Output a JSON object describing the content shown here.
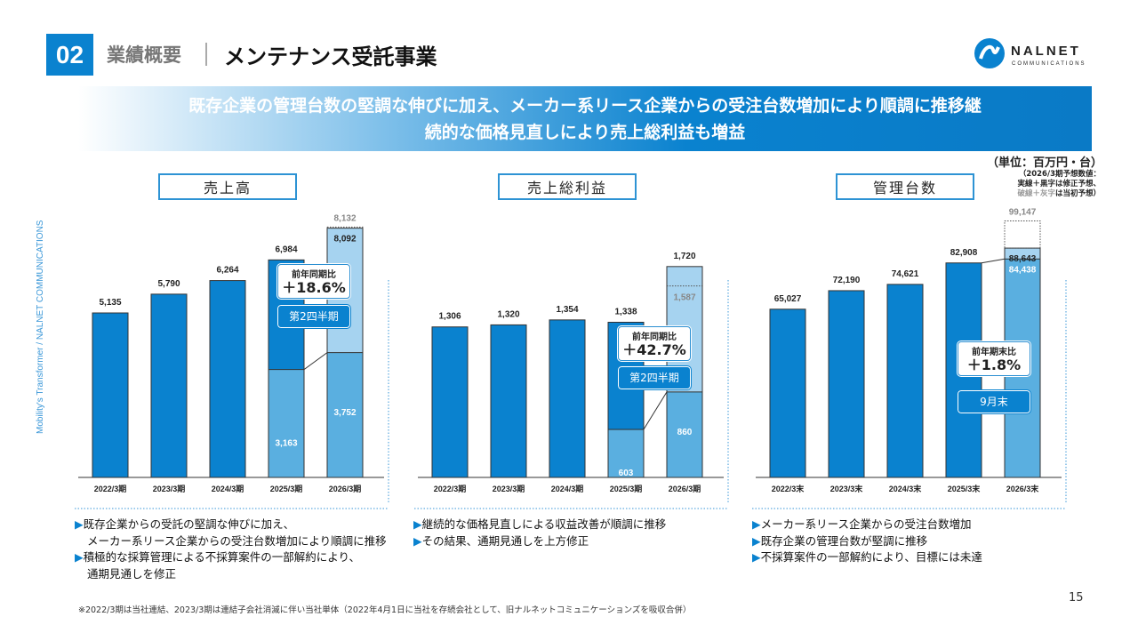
{
  "header": {
    "section_number": "02",
    "category": "業績概要",
    "title": "メンテナンス受託事業"
  },
  "logo": {
    "name": "NALNET",
    "sub": "COMMUNICATIONS"
  },
  "banner": {
    "line1": "既存企業の管理台数の堅調な伸びに加え、メーカー系リース企業からの受注台数増加により順調に推移継",
    "line2": "続的な価格見直しにより売上総利益も増益"
  },
  "unit": "（単位：百万円・台）",
  "forecast_note": {
    "line1": "（2026/3期予想数値：",
    "line2": "実線＋黒字は修正予想、",
    "line3_grey": "破線＋灰字",
    "line3_rest": "は当初予想）"
  },
  "side_text": "Mobility's Transformer / NALNET COMMUNICATIONS",
  "colors": {
    "actual": "#0a82cf",
    "half": "#5aafe0",
    "forecast": "#a6d3f0",
    "accent": "#0a82cf"
  },
  "chart_data": [
    {
      "type": "bar",
      "title": "売上高",
      "categories": [
        "2022/3期",
        "2023/3期",
        "2024/3期",
        "2025/3期",
        "2026/3期"
      ],
      "values": [
        5135,
        5790,
        6264,
        6984,
        8092
      ],
      "labels": [
        "5,135",
        "5,790",
        "6,264",
        "6,984",
        "8,092"
      ],
      "initial_forecast": 8132,
      "initial_label": "8,132",
      "half": {
        "prev": 3163,
        "prev_label": "3,163",
        "current": 3752,
        "current_label": "3,752"
      },
      "callout": {
        "label": "前年同期比",
        "value": "＋18.6%",
        "period": "第2四半期"
      },
      "ylim": [
        -600,
        8700
      ]
    },
    {
      "type": "bar",
      "title": "売上総利益",
      "categories": [
        "2022/3期",
        "2023/3期",
        "2024/3期",
        "2025/3期",
        "2026/3期"
      ],
      "values": [
        1306,
        1320,
        1354,
        1338,
        1720
      ],
      "labels": [
        "1,306",
        "1,320",
        "1,354",
        "1,338",
        "1,720"
      ],
      "initial_forecast": 1587,
      "initial_label": "1,587",
      "half": {
        "prev": 603,
        "prev_label": "603",
        "current": 860,
        "current_label": "860"
      },
      "callout": {
        "label": "前年同期比",
        "value": "＋42.7%",
        "period": "第2四半期"
      },
      "ylim": [
        274,
        2103
      ]
    },
    {
      "type": "bar",
      "title": "管理台数",
      "categories": [
        "2022/3末",
        "2023/3末",
        "2024/3末",
        "2025/3末",
        "2026/3末"
      ],
      "values": [
        65027,
        72190,
        74621,
        82908,
        88643
      ],
      "labels": [
        "65,027",
        "72,190",
        "74,621",
        "82,908",
        "88,643"
      ],
      "initial_forecast": 99147,
      "initial_label": "99,147",
      "half": {
        "current": 84438,
        "current_label": "84,438"
      },
      "callout": {
        "label": "前年期末比",
        "value": "＋1.8%",
        "period": "9月末"
      },
      "ylim": [
        0,
        103100
      ]
    }
  ],
  "bullets": [
    [
      [
        "既存企業からの受託の堅調な伸びに加え、",
        "メーカー系リース企業からの受注台数増加により順調に推移"
      ],
      [
        "積極的な採算管理による不採算案件の一部解約により、",
        "通期見通しを修正"
      ]
    ],
    [
      [
        "継続的な価格見直しによる収益改善が順調に推移"
      ],
      [
        "その結果、通期見通しを上方修正"
      ]
    ],
    [
      [
        "メーカー系リース企業からの受注台数増加"
      ],
      [
        "既存企業の管理台数が堅調に推移"
      ],
      [
        "不採算案件の一部解約により、目標には未達"
      ]
    ]
  ],
  "footnote": "※2022/3期は当社連結、2023/3期は連結子会社消滅に伴い当社単体（2022年4月1日に当社を存続会社として、旧ナルネットコミュニケーションズを吸収合併）",
  "page_number": "15"
}
